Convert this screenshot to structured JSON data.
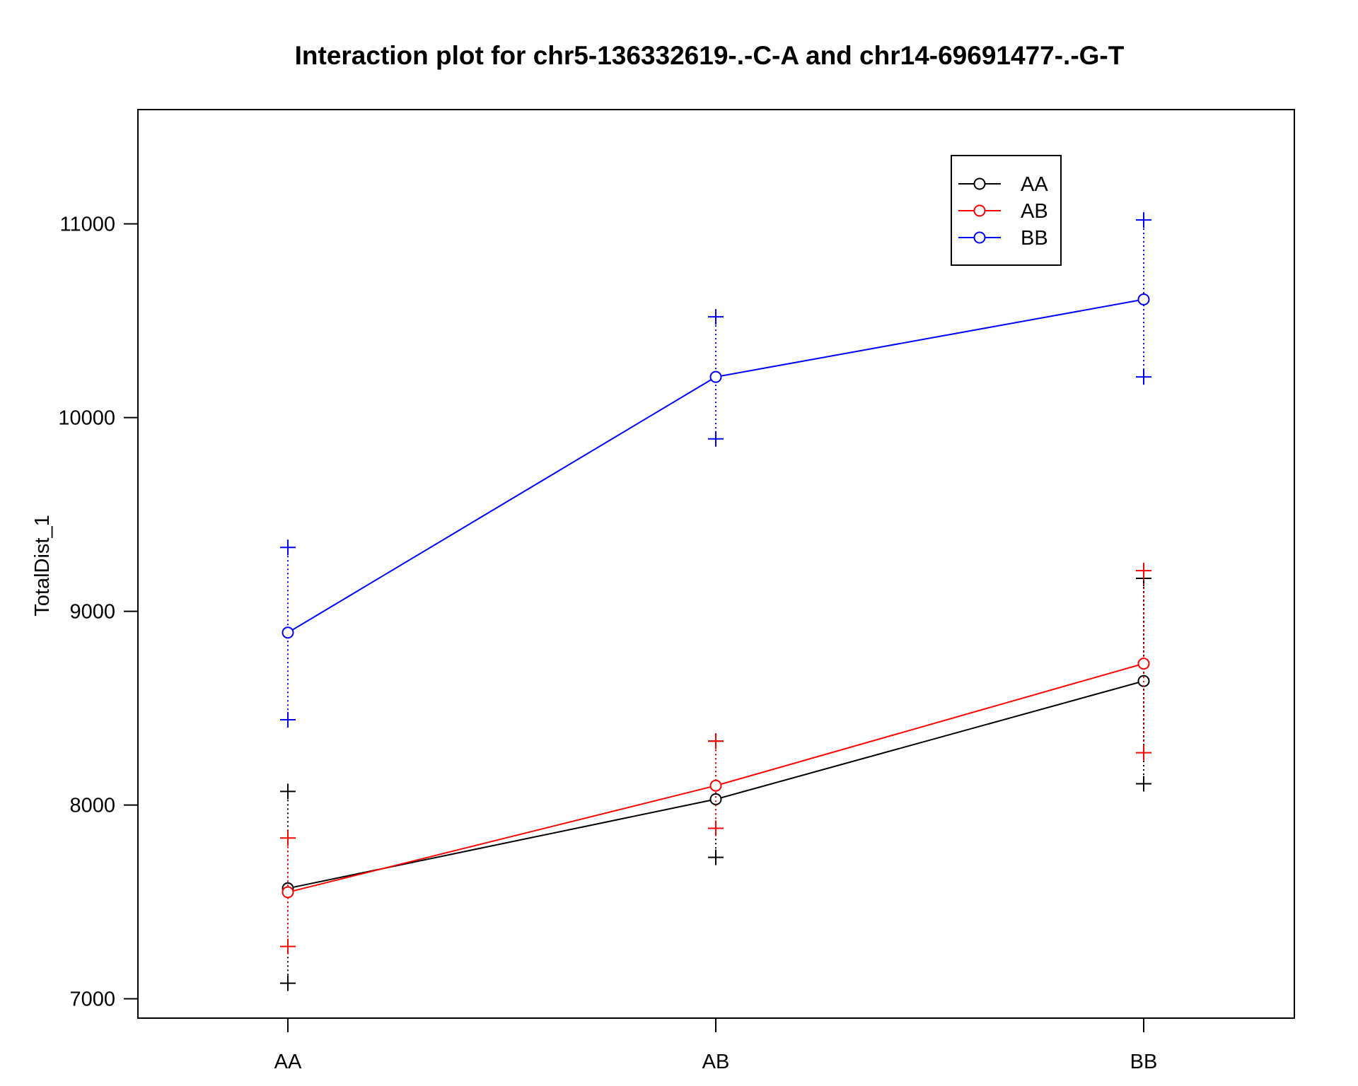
{
  "chart_data": {
    "type": "line",
    "title": "Interaction plot for chr5-136332619-.-C-A and chr14-69691477-.-G-T",
    "xlabel": "",
    "ylabel": "TotalDist_1",
    "categories": [
      "AA",
      "AB",
      "BB"
    ],
    "y_ticks": [
      7000,
      8000,
      9000,
      10000,
      11000
    ],
    "ylim": [
      6900,
      11590
    ],
    "grid": false,
    "legend_position": "top-right",
    "series": [
      {
        "name": "AA",
        "color": "#000000",
        "values": [
          7570,
          8030,
          8640
        ],
        "upper": [
          8070,
          8330,
          9170
        ],
        "lower": [
          7080,
          7730,
          8110
        ]
      },
      {
        "name": "AB",
        "color": "#ff0000",
        "values": [
          7550,
          8100,
          8730
        ],
        "upper": [
          7830,
          8330,
          9210
        ],
        "lower": [
          7270,
          7880,
          8270
        ]
      },
      {
        "name": "BB",
        "color": "#0000ff",
        "values": [
          8890,
          10210,
          10610
        ],
        "upper": [
          9330,
          10520,
          11020
        ],
        "lower": [
          8440,
          9890,
          10210
        ]
      }
    ]
  }
}
